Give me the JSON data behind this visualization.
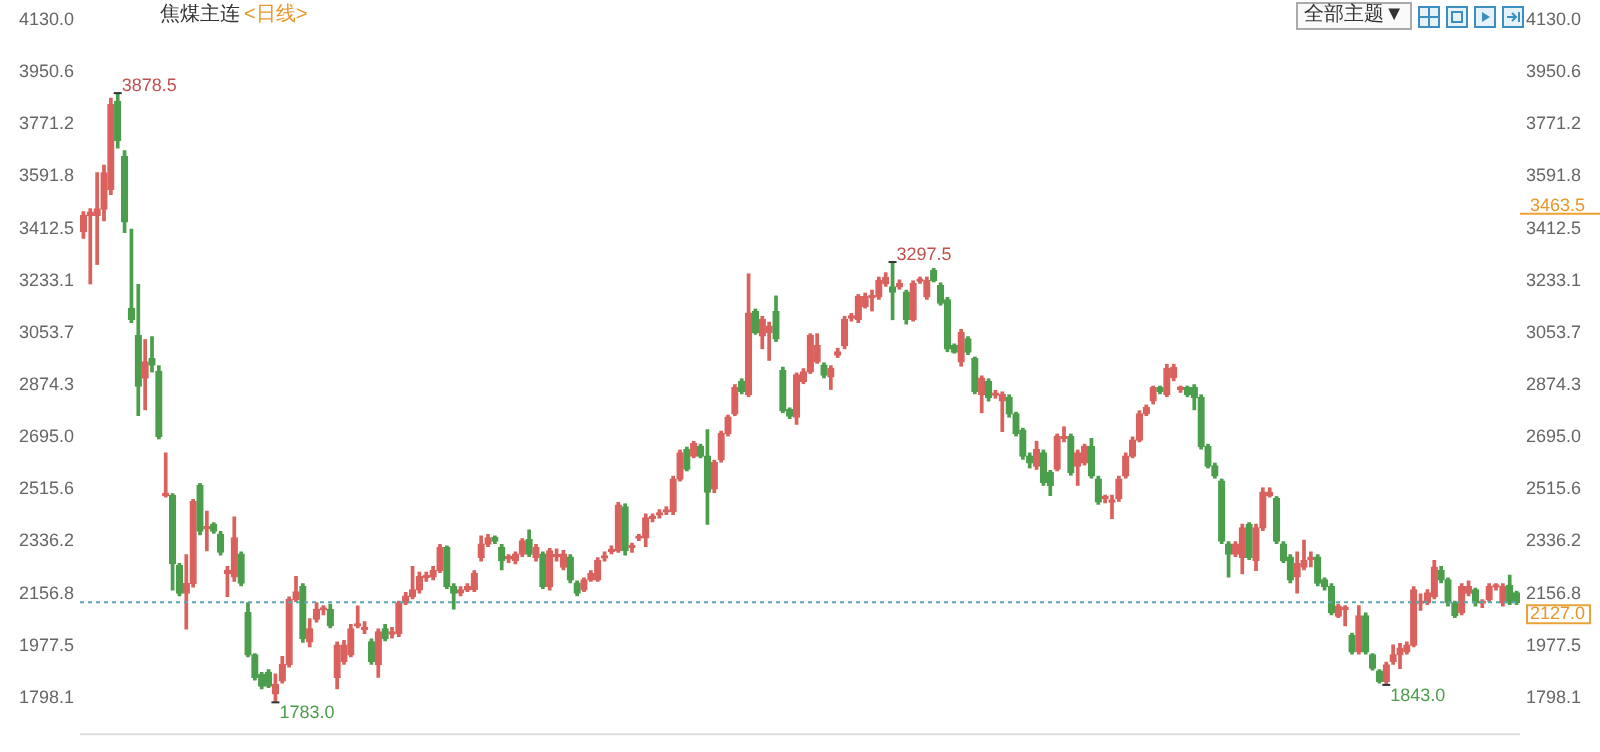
{
  "chart_data": {
    "type": "candlestick",
    "title": "焦煤主连",
    "subtitle": "<日线>",
    "categories": [
      null,
      null,
      null,
      null,
      null,
      null,
      null,
      null,
      null,
      null,
      null,
      null,
      null,
      null,
      null,
      null,
      null,
      null,
      null,
      null,
      null,
      null,
      null,
      null,
      null,
      null,
      null,
      null,
      null,
      null,
      null,
      null,
      null,
      null,
      null,
      null,
      null,
      null,
      null,
      null,
      null,
      null,
      null,
      null,
      null,
      null,
      null,
      null,
      null,
      null,
      null,
      null,
      null,
      null,
      null,
      null,
      null,
      null,
      null,
      null,
      null,
      null,
      null,
      null,
      null,
      null,
      null,
      null,
      null,
      null,
      null,
      null,
      null,
      null,
      null,
      null,
      null,
      null,
      null,
      null,
      null,
      null,
      null,
      null,
      null,
      null,
      null,
      null,
      null,
      null,
      null,
      null,
      null,
      null,
      null,
      null,
      null,
      null,
      null,
      null,
      null,
      null,
      null,
      null,
      null,
      null,
      null,
      null,
      null,
      null,
      null,
      null,
      null,
      null,
      null,
      null,
      null,
      null,
      null,
      null,
      null,
      null,
      null,
      null,
      null,
      null,
      null,
      null,
      null,
      null,
      null,
      null,
      null,
      null,
      null,
      null,
      null,
      null,
      null,
      null,
      null,
      null,
      null,
      null,
      null,
      null,
      null,
      null,
      null,
      null,
      null,
      null,
      null,
      null,
      null,
      null,
      null,
      null,
      null,
      null,
      null,
      null,
      null,
      null,
      null,
      null,
      null,
      null,
      null,
      null,
      null,
      null,
      null,
      null,
      null,
      null,
      null,
      null,
      null,
      null,
      null,
      null,
      null,
      null,
      null,
      null,
      null,
      null,
      null,
      null,
      null,
      null,
      null,
      null,
      null,
      null,
      null,
      null,
      null,
      null,
      null,
      null,
      null,
      null,
      null,
      null,
      null,
      null,
      null,
      null
    ],
    "ohlc": [
      [
        3402,
        3470,
        3380,
        3458
      ],
      [
        3458,
        3480,
        3223,
        3469
      ],
      [
        3458,
        3604,
        3290,
        3480
      ],
      [
        3480,
        3630,
        3440,
        3604
      ],
      [
        3547,
        3860,
        3530,
        3839
      ],
      [
        3850,
        3878.5,
        3690,
        3716
      ],
      [
        3660,
        3680,
        3400,
        3436
      ],
      [
        3138,
        3410,
        3090,
        3100
      ],
      [
        3044,
        3220,
        2770,
        2871
      ],
      [
        2898,
        3030,
        2790,
        2954
      ],
      [
        2965,
        3040,
        2920,
        2943
      ],
      [
        2921,
        2940,
        2690,
        2697
      ],
      [
        2495,
        2640,
        2490,
        2497
      ],
      [
        2495,
        2500,
        2170,
        2260
      ],
      [
        2253,
        2260,
        2150,
        2159
      ],
      [
        2159,
        2290,
        2036,
        2192
      ],
      [
        2192,
        2480,
        2180,
        2473
      ],
      [
        2529,
        2535,
        2360,
        2372
      ],
      [
        2380,
        2440,
        2305,
        2384
      ],
      [
        2394,
        2400,
        2365,
        2372
      ],
      [
        2361,
        2370,
        2290,
        2300
      ],
      [
        2226,
        2250,
        2148,
        2237
      ],
      [
        2215,
        2420,
        2200,
        2349
      ],
      [
        2293,
        2300,
        2185,
        2193
      ],
      [
        2092,
        2125,
        1940,
        1946
      ],
      [
        1946,
        1950,
        1860,
        1868
      ],
      [
        1879,
        1885,
        1830,
        1839
      ],
      [
        1886,
        1895,
        1835,
        1839
      ],
      [
        1812,
        1880,
        1783,
        1845
      ],
      [
        1857,
        1940,
        1850,
        1913
      ],
      [
        1913,
        2145,
        1905,
        2137
      ],
      [
        2137,
        2215,
        2130,
        2163
      ],
      [
        2181,
        2190,
        1990,
        2002
      ],
      [
        1991,
        2070,
        1975,
        2036
      ],
      [
        2069,
        2125,
        2060,
        2103
      ],
      [
        2101,
        2115,
        2085,
        2103
      ],
      [
        2103,
        2120,
        2040,
        2047
      ],
      [
        1868,
        1990,
        1830,
        1980
      ],
      [
        1924,
        1995,
        1915,
        1980
      ],
      [
        1946,
        2050,
        1940,
        2036
      ],
      [
        2046,
        2114,
        2040,
        2047
      ],
      [
        2034,
        2060,
        2020,
        2038
      ],
      [
        1991,
        2000,
        1915,
        1924
      ],
      [
        1913,
        2035,
        1870,
        2025
      ],
      [
        2036,
        2050,
        1995,
        2002
      ],
      [
        2018,
        2040,
        2005,
        2022
      ],
      [
        2020,
        2130,
        2010,
        2125
      ],
      [
        2125,
        2160,
        2120,
        2148
      ],
      [
        2148,
        2250,
        2140,
        2170
      ],
      [
        2170,
        2230,
        2160,
        2215
      ],
      [
        2213,
        2230,
        2200,
        2218
      ],
      [
        2215,
        2250,
        2205,
        2237
      ],
      [
        2237,
        2325,
        2230,
        2316
      ],
      [
        2316,
        2320,
        2175,
        2181
      ],
      [
        2181,
        2190,
        2105,
        2159
      ],
      [
        2160,
        2180,
        2150,
        2170
      ],
      [
        2170,
        2190,
        2165,
        2181
      ],
      [
        2172,
        2235,
        2165,
        2226
      ],
      [
        2282,
        2355,
        2270,
        2327
      ],
      [
        2327,
        2360,
        2320,
        2349
      ],
      [
        2350,
        2355,
        2330,
        2338
      ],
      [
        2316,
        2325,
        2240,
        2271
      ],
      [
        2277,
        2290,
        2265,
        2278
      ],
      [
        2271,
        2300,
        2260,
        2293
      ],
      [
        2293,
        2345,
        2285,
        2338
      ],
      [
        2343,
        2375,
        2285,
        2293
      ],
      [
        2282,
        2325,
        2270,
        2316
      ],
      [
        2293,
        2300,
        2175,
        2181
      ],
      [
        2181,
        2312,
        2170,
        2304
      ],
      [
        2284,
        2310,
        2270,
        2287
      ],
      [
        2248,
        2305,
        2240,
        2293
      ],
      [
        2282,
        2290,
        2195,
        2204
      ],
      [
        2193,
        2200,
        2150,
        2159
      ],
      [
        2170,
        2210,
        2165,
        2204
      ],
      [
        2204,
        2235,
        2200,
        2226
      ],
      [
        2204,
        2280,
        2200,
        2271
      ],
      [
        2280,
        2300,
        2270,
        2284
      ],
      [
        2302,
        2320,
        2295,
        2305
      ],
      [
        2305,
        2470,
        2300,
        2461
      ],
      [
        2455,
        2465,
        2290,
        2305
      ],
      [
        2316,
        2330,
        2300,
        2318
      ],
      [
        2348,
        2360,
        2340,
        2352
      ],
      [
        2349,
        2430,
        2320,
        2417
      ],
      [
        2416,
        2430,
        2405,
        2420
      ],
      [
        2428,
        2445,
        2418,
        2432
      ],
      [
        2438,
        2455,
        2430,
        2442
      ],
      [
        2439,
        2560,
        2430,
        2551
      ],
      [
        2551,
        2650,
        2545,
        2641
      ],
      [
        2652,
        2660,
        2580,
        2585
      ],
      [
        2630,
        2680,
        2625,
        2674
      ],
      [
        2663,
        2670,
        2625,
        2630
      ],
      [
        2630,
        2720,
        2396,
        2506
      ],
      [
        2517,
        2615,
        2505,
        2607
      ],
      [
        2618,
        2715,
        2610,
        2708
      ],
      [
        2708,
        2770,
        2700,
        2764
      ],
      [
        2775,
        2875,
        2770,
        2865
      ],
      [
        2887,
        2895,
        2845,
        2853
      ],
      [
        2842,
        3256,
        2835,
        3122
      ],
      [
        3127,
        3135,
        3050,
        3055
      ],
      [
        3044,
        3110,
        3000,
        3100
      ],
      [
        3055,
        3090,
        2960,
        3077
      ],
      [
        3127,
        3180,
        3025,
        3033
      ],
      [
        2925,
        2935,
        2780,
        2786
      ],
      [
        2790,
        2795,
        2760,
        2768
      ],
      [
        2764,
        2915,
        2740,
        2909
      ],
      [
        2887,
        2930,
        2880,
        2920
      ],
      [
        2920,
        3050,
        2915,
        3044
      ],
      [
        2954,
        3050,
        2950,
        3010
      ],
      [
        2943,
        2950,
        2900,
        2909
      ],
      [
        2903,
        2940,
        2860,
        2932
      ],
      [
        2977,
        3000,
        2970,
        2988
      ],
      [
        3010,
        3110,
        3000,
        3100
      ],
      [
        3105,
        3120,
        3095,
        3110
      ],
      [
        3100,
        3185,
        3090,
        3178
      ],
      [
        3145,
        3190,
        3140,
        3178
      ],
      [
        3175,
        3200,
        3130,
        3178
      ],
      [
        3178,
        3245,
        3170,
        3234
      ],
      [
        3223,
        3260,
        3215,
        3245
      ],
      [
        3212,
        3297.5,
        3100,
        3194
      ],
      [
        3212,
        3235,
        3205,
        3223
      ],
      [
        3194,
        3200,
        3085,
        3100
      ],
      [
        3100,
        3232,
        3095,
        3223
      ],
      [
        3232,
        3245,
        3225,
        3234
      ],
      [
        3178,
        3245,
        3170,
        3234
      ],
      [
        3268,
        3275,
        3230,
        3234
      ],
      [
        3216,
        3225,
        3150,
        3156
      ],
      [
        3167,
        3175,
        2990,
        2999
      ],
      [
        3010,
        3015,
        2985,
        2988
      ],
      [
        2954,
        3065,
        2940,
        3055
      ],
      [
        3033,
        3040,
        2980,
        2988
      ],
      [
        2965,
        2970,
        2845,
        2853
      ],
      [
        2842,
        2905,
        2780,
        2898
      ],
      [
        2887,
        2895,
        2820,
        2831
      ],
      [
        2840,
        2855,
        2830,
        2843
      ],
      [
        2820,
        2850,
        2715,
        2842
      ],
      [
        2831,
        2840,
        2765,
        2775
      ],
      [
        2775,
        2780,
        2700,
        2708
      ],
      [
        2719,
        2725,
        2620,
        2630
      ],
      [
        2630,
        2640,
        2590,
        2607
      ],
      [
        2596,
        2680,
        2585,
        2652
      ],
      [
        2641,
        2650,
        2530,
        2540
      ],
      [
        2573,
        2580,
        2495,
        2529
      ],
      [
        2585,
        2705,
        2580,
        2697
      ],
      [
        2690,
        2730,
        2680,
        2697
      ],
      [
        2697,
        2705,
        2565,
        2573
      ],
      [
        2596,
        2650,
        2530,
        2641
      ],
      [
        2607,
        2670,
        2600,
        2663
      ],
      [
        2663,
        2690,
        2555,
        2562
      ],
      [
        2551,
        2560,
        2465,
        2473
      ],
      [
        2484,
        2495,
        2470,
        2485
      ],
      [
        2472,
        2495,
        2416,
        2475
      ],
      [
        2484,
        2560,
        2475,
        2551
      ],
      [
        2562,
        2640,
        2555,
        2630
      ],
      [
        2630,
        2695,
        2625,
        2685
      ],
      [
        2685,
        2785,
        2680,
        2775
      ],
      [
        2775,
        2805,
        2770,
        2797
      ],
      [
        2820,
        2870,
        2810,
        2865
      ],
      [
        2865,
        2870,
        2845,
        2853
      ],
      [
        2842,
        2945,
        2835,
        2932
      ],
      [
        2900,
        2945,
        2890,
        2935
      ],
      [
        2860,
        2870,
        2850,
        2862
      ],
      [
        2865,
        2870,
        2835,
        2842
      ],
      [
        2865,
        2875,
        2790,
        2831
      ],
      [
        2831,
        2840,
        2655,
        2663
      ],
      [
        2663,
        2670,
        2590,
        2596
      ],
      [
        2596,
        2605,
        2555,
        2562
      ],
      [
        2544,
        2550,
        2330,
        2338
      ],
      [
        2327,
        2335,
        2215,
        2293
      ],
      [
        2293,
        2335,
        2285,
        2327
      ],
      [
        2282,
        2395,
        2226,
        2383
      ],
      [
        2394,
        2400,
        2275,
        2282
      ],
      [
        2271,
        2395,
        2237,
        2383
      ],
      [
        2383,
        2520,
        2375,
        2506
      ],
      [
        2495,
        2520,
        2490,
        2506
      ],
      [
        2484,
        2490,
        2330,
        2338
      ],
      [
        2327,
        2335,
        2265,
        2271
      ],
      [
        2282,
        2290,
        2195,
        2204
      ],
      [
        2215,
        2300,
        2160,
        2260
      ],
      [
        2248,
        2340,
        2240,
        2271
      ],
      [
        2275,
        2300,
        2250,
        2276
      ],
      [
        2282,
        2290,
        2185,
        2193
      ],
      [
        2204,
        2210,
        2170,
        2181
      ],
      [
        2181,
        2190,
        2085,
        2092
      ],
      [
        2080,
        2120,
        2075,
        2114
      ],
      [
        2103,
        2115,
        2047,
        2104
      ],
      [
        2013,
        2020,
        1950,
        1957
      ],
      [
        1957,
        2115,
        1950,
        2080
      ],
      [
        2080,
        2090,
        1950,
        1957
      ],
      [
        1946,
        1950,
        1895,
        1901
      ],
      [
        1890,
        1895,
        1850,
        1855
      ],
      [
        1855,
        1920,
        1843,
        1912
      ],
      [
        1924,
        1980,
        1915,
        1946
      ],
      [
        1946,
        1985,
        1900,
        1969
      ],
      [
        1957,
        1990,
        1950,
        1980
      ],
      [
        1980,
        2180,
        1975,
        2170
      ],
      [
        2124,
        2155,
        2100,
        2126
      ],
      [
        2126,
        2170,
        2120,
        2159
      ],
      [
        2147,
        2270,
        2140,
        2248
      ],
      [
        2237,
        2250,
        2195,
        2204
      ],
      [
        2204,
        2210,
        2115,
        2125
      ],
      [
        2125,
        2130,
        2075,
        2081
      ],
      [
        2092,
        2190,
        2085,
        2181
      ],
      [
        2159,
        2200,
        2150,
        2181
      ],
      [
        2170,
        2175,
        2115,
        2125
      ],
      [
        2124,
        2135,
        2110,
        2126
      ],
      [
        2137,
        2190,
        2130,
        2181
      ],
      [
        2180,
        2190,
        2170,
        2181
      ],
      [
        2125,
        2190,
        2115,
        2181
      ],
      [
        2185,
        2220,
        2120,
        2125
      ],
      [
        2159,
        2165,
        2120,
        2127
      ]
    ],
    "colors": [
      "#d9625e",
      "#d9625e",
      "#d9625e",
      "#d9625e",
      "#d9625e",
      "#4b9e4b",
      "#4b9e4b",
      "#4b9e4b",
      "#4b9e4b",
      "#d9625e",
      "#4b9e4b",
      "#4b9e4b",
      "#d9625e",
      "#4b9e4b",
      "#4b9e4b",
      "#d9625e",
      "#d9625e",
      "#4b9e4b",
      "#d9625e",
      "#4b9e4b",
      "#4b9e4b",
      "#d9625e",
      "#d9625e",
      "#4b9e4b",
      "#4b9e4b",
      "#4b9e4b",
      "#4b9e4b",
      "#4b9e4b",
      "#d9625e",
      "#d9625e",
      "#d9625e",
      "#d9625e",
      "#4b9e4b",
      "#d9625e",
      "#d9625e",
      "#d9625e",
      "#4b9e4b",
      "#d9625e",
      "#d9625e",
      "#d9625e",
      "#d9625e",
      "#d9625e",
      "#4b9e4b",
      "#d9625e",
      "#4b9e4b",
      "#d9625e",
      "#d9625e",
      "#d9625e",
      "#d9625e",
      "#d9625e",
      "#d9625e",
      "#d9625e",
      "#d9625e",
      "#4b9e4b",
      "#4b9e4b",
      "#d9625e",
      "#d9625e",
      "#d9625e",
      "#d9625e",
      "#d9625e",
      "#4b9e4b",
      "#4b9e4b",
      "#d9625e",
      "#d9625e",
      "#d9625e",
      "#4b9e4b",
      "#d9625e",
      "#4b9e4b",
      "#d9625e",
      "#d9625e",
      "#d9625e",
      "#4b9e4b",
      "#4b9e4b",
      "#d9625e",
      "#d9625e",
      "#d9625e",
      "#d9625e",
      "#d9625e",
      "#d9625e",
      "#4b9e4b",
      "#d9625e",
      "#d9625e",
      "#d9625e",
      "#d9625e",
      "#d9625e",
      "#d9625e",
      "#d9625e",
      "#d9625e",
      "#4b9e4b",
      "#d9625e",
      "#4b9e4b",
      "#4b9e4b",
      "#d9625e",
      "#d9625e",
      "#d9625e",
      "#d9625e",
      "#4b9e4b",
      "#d9625e",
      "#4b9e4b",
      "#d9625e",
      "#d9625e",
      "#4b9e4b",
      "#4b9e4b",
      "#4b9e4b",
      "#d9625e",
      "#d9625e",
      "#d9625e",
      "#d9625e",
      "#4b9e4b",
      "#d9625e",
      "#d9625e",
      "#d9625e",
      "#d9625e",
      "#d9625e",
      "#d9625e",
      "#d9625e",
      "#d9625e",
      "#d9625e",
      "#4b9e4b",
      "#d9625e",
      "#4b9e4b",
      "#d9625e",
      "#d9625e",
      "#d9625e",
      "#4b9e4b",
      "#4b9e4b",
      "#4b9e4b",
      "#4b9e4b",
      "#d9625e",
      "#4b9e4b",
      "#4b9e4b",
      "#d9625e",
      "#4b9e4b",
      "#d9625e",
      "#d9625e",
      "#4b9e4b",
      "#4b9e4b",
      "#4b9e4b",
      "#4b9e4b",
      "#d9625e",
      "#4b9e4b",
      "#4b9e4b",
      "#d9625e",
      "#d9625e",
      "#4b9e4b",
      "#d9625e",
      "#d9625e",
      "#4b9e4b",
      "#4b9e4b",
      "#d9625e",
      "#d9625e",
      "#d9625e",
      "#d9625e",
      "#d9625e",
      "#d9625e",
      "#d9625e",
      "#d9625e",
      "#4b9e4b",
      "#d9625e",
      "#d9625e",
      "#d9625e",
      "#4b9e4b",
      "#4b9e4b",
      "#4b9e4b",
      "#4b9e4b",
      "#4b9e4b",
      "#4b9e4b",
      "#4b9e4b",
      "#d9625e",
      "#d9625e",
      "#4b9e4b",
      "#d9625e",
      "#d9625e",
      "#d9625e",
      "#4b9e4b",
      "#4b9e4b",
      "#4b9e4b",
      "#d9625e",
      "#d9625e",
      "#d9625e",
      "#4b9e4b",
      "#4b9e4b",
      "#4b9e4b",
      "#d9625e",
      "#d9625e",
      "#4b9e4b",
      "#d9625e",
      "#4b9e4b",
      "#4b9e4b",
      "#4b9e4b",
      "#d9625e",
      "#d9625e",
      "#d9625e",
      "#d9625e",
      "#d9625e",
      "#d9625e",
      "#d9625e",
      "#d9625e",
      "#4b9e4b",
      "#4b9e4b",
      "#4b9e4b",
      "#d9625e",
      "#d9625e",
      "#4b9e4b",
      "#d9625e",
      "#d9625e",
      "#d9625e",
      "#d9625e",
      "#4b9e4b",
      "#4b9e4b"
    ],
    "ylim": [
      1670,
      4130
    ],
    "yticks": [
      {
        "value": 1798.1,
        "label": "1798.1"
      },
      {
        "value": 1977.5,
        "label": "1977.5"
      },
      {
        "value": 2156.8,
        "label": "2156.8"
      },
      {
        "value": 2336.2,
        "label": "2336.2"
      },
      {
        "value": 2515.6,
        "label": "2515.6"
      },
      {
        "value": 2695,
        "label": "2695.0"
      },
      {
        "value": 2874.3,
        "label": "2874.3"
      },
      {
        "value": 3053.7,
        "label": "3053.7"
      },
      {
        "value": 3233.1,
        "label": "3233.1"
      },
      {
        "value": 3412.5,
        "label": "3412.5"
      },
      {
        "value": 3591.8,
        "label": "3591.8"
      },
      {
        "value": 3771.2,
        "label": "3771.2"
      },
      {
        "value": 3950.6,
        "label": "3950.6"
      },
      {
        "value": 4130,
        "label": "4130.0"
      }
    ],
    "y2lim": [
      1670,
      4130
    ],
    "y2ticks": [
      {
        "value": 1798.1,
        "label": "1798.1"
      },
      {
        "value": 1977.5,
        "label": "1977.5"
      },
      {
        "value": 2156.8,
        "label": "2156.8"
      },
      {
        "value": 2336.2,
        "label": "2336.2"
      },
      {
        "value": 2515.6,
        "label": "2515.6"
      },
      {
        "value": 2695,
        "label": "2695.0"
      },
      {
        "value": 2874.3,
        "label": "2874.3"
      },
      {
        "value": 3053.7,
        "label": "3053.7"
      },
      {
        "value": 3233.1,
        "label": "3233.1"
      },
      {
        "value": 3412.5,
        "label": "3412.5"
      },
      {
        "value": 3591.8,
        "label": "3591.8"
      },
      {
        "value": 3771.2,
        "label": "3771.2"
      },
      {
        "value": 3950.6,
        "label": "3950.6"
      },
      {
        "value": 4130,
        "label": "4130.0"
      }
    ],
    "tick_labels": "y",
    "ref_lines": [
      {
        "axis": "y2",
        "value": 2127.0,
        "label": "2127.0",
        "color": "#5aa7b0",
        "line_style": "dashed"
      },
      {
        "axis": "y2",
        "value": 3463.5,
        "label": "3463.5",
        "color": "#f0a030"
      }
    ],
    "value_labels": [
      null,
      null,
      null,
      null,
      null,
      "3878.5",
      null,
      null,
      null,
      null,
      null,
      null,
      null,
      null,
      null,
      null,
      null,
      null,
      null,
      null,
      null,
      null,
      null,
      null,
      null,
      null,
      null,
      null,
      "1783.0",
      null,
      null,
      null,
      null,
      null,
      null,
      null,
      null,
      null,
      null,
      null,
      null,
      null,
      null,
      null,
      null,
      null,
      null,
      null,
      null,
      null,
      null,
      null,
      null,
      null,
      null,
      null,
      null,
      null,
      null,
      null,
      null,
      null,
      null,
      null,
      null,
      null,
      null,
      null,
      null,
      null,
      null,
      null,
      null,
      null,
      null,
      null,
      null,
      null,
      null,
      null,
      null,
      null,
      null,
      null,
      null,
      null,
      null,
      null,
      null,
      null,
      null,
      null,
      null,
      null,
      null,
      null,
      null,
      null,
      null,
      null,
      null,
      null,
      null,
      null,
      null,
      null,
      null,
      null,
      null,
      null,
      null,
      null,
      null,
      null,
      null,
      null,
      null,
      null,
      "3297.5",
      null,
      null,
      null,
      null,
      null,
      null,
      null,
      null,
      null,
      null,
      null,
      null,
      null,
      null,
      null,
      null,
      null,
      null,
      null,
      null,
      null,
      null,
      null,
      null,
      null,
      null,
      null,
      null,
      null,
      null,
      null,
      null,
      null,
      null,
      null,
      null,
      null,
      null,
      null,
      null,
      null,
      null,
      null,
      null,
      null,
      null,
      null,
      null,
      null,
      null,
      null,
      null,
      null,
      null,
      null,
      null,
      null,
      null,
      null,
      null,
      null,
      null,
      null,
      null,
      null,
      null,
      null,
      null,
      null,
      null,
      null,
      "1843.0",
      null,
      null,
      null,
      null,
      null,
      null,
      null,
      null,
      null,
      null,
      null,
      null,
      null,
      null,
      null,
      null,
      null,
      null,
      null
    ],
    "annotations": [
      "全部主题▼"
    ]
  }
}
